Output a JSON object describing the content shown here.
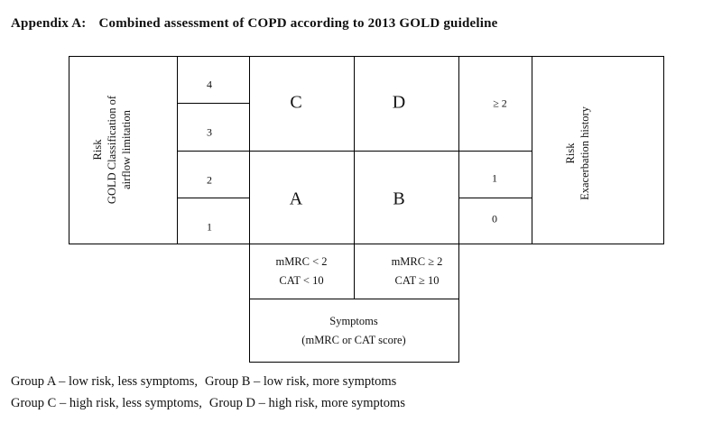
{
  "title": {
    "label": "Appendix A:",
    "text": "Combined assessment of COPD according to 2013 GOLD guideline"
  },
  "left_panel": {
    "line1": "Risk",
    "line2": "GOLD Classification of",
    "line3": "airflow limitation"
  },
  "gold_grades": [
    "4",
    "3",
    "2",
    "1"
  ],
  "groups": {
    "c": "C",
    "d": "D",
    "a": "A",
    "b": "B"
  },
  "exacerbations": {
    "high": "≥ 2",
    "one": "1",
    "zero": "0"
  },
  "right_panel": {
    "line1": "Risk",
    "line2": "Exacerbation history"
  },
  "symptom_thresholds": {
    "low": {
      "mmrc": "mMRC < 2",
      "cat": "CAT < 10"
    },
    "high": {
      "mmrc": "mMRC ≥ 2",
      "cat": "CAT ≥ 10"
    }
  },
  "symptoms_box": {
    "line1": "Symptoms",
    "line2": "(mMRC or CAT score)"
  },
  "legend": {
    "a": "Group A – low risk, less symptoms,",
    "b": "Group B – low risk, more symptoms",
    "c": "Group C – high risk, less symptoms,",
    "d": "Group D – high risk, more symptoms"
  }
}
